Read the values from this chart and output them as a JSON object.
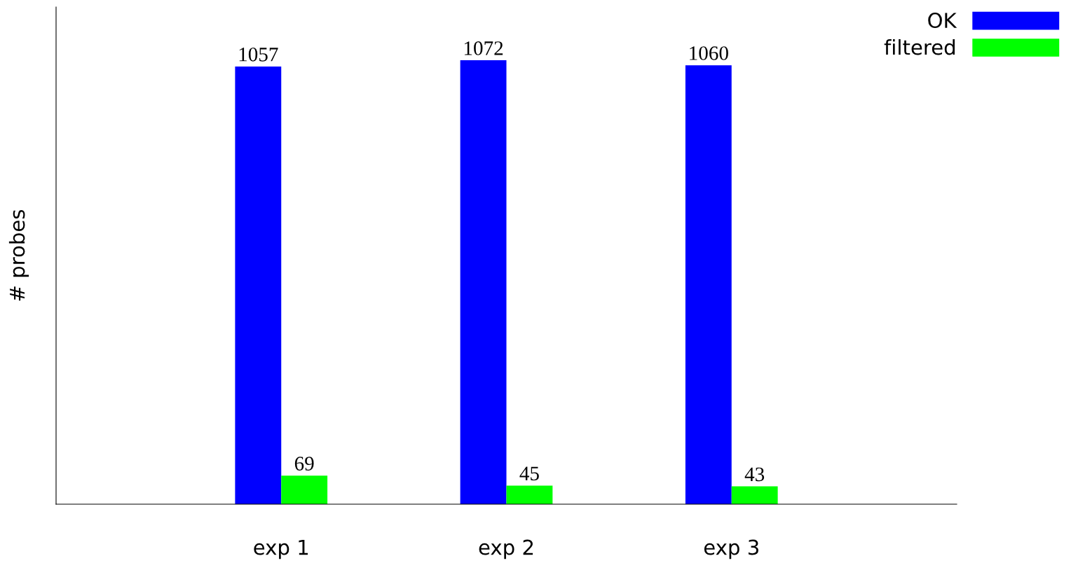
{
  "chart_data": {
    "type": "bar",
    "ylabel": "# probes",
    "categories": [
      "exp 1",
      "exp 2",
      "exp 3"
    ],
    "series": [
      {
        "name": "OK",
        "color": "#0000ff",
        "values": [
          1057,
          1072,
          1060
        ]
      },
      {
        "name": "filtered",
        "color": "#00ff00",
        "values": [
          69,
          45,
          43
        ]
      }
    ],
    "data_labels": true,
    "legend": "top right",
    "grid": false,
    "tick_labels": "x"
  }
}
